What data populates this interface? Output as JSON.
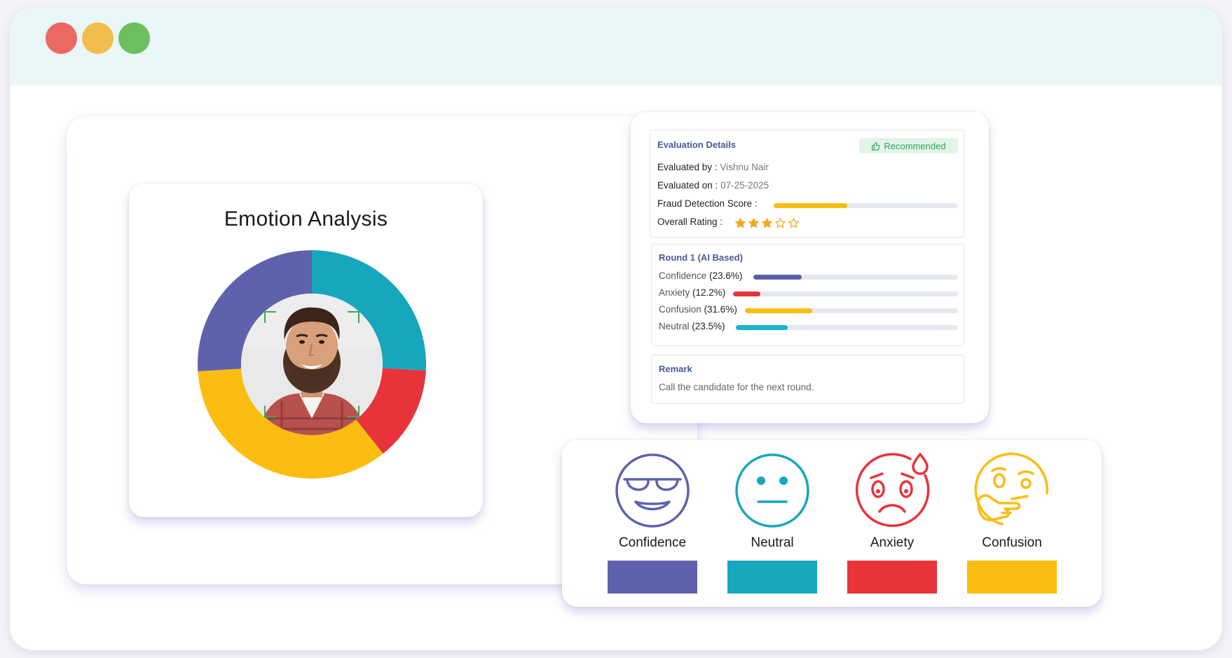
{
  "window": {
    "traffic_lights": [
      "#ea6a63",
      "#f1bd4e",
      "#6bc05e"
    ]
  },
  "emotion_card": {
    "title": "Emotion Analysis",
    "donut_segments": [
      {
        "name": "Neutral",
        "percent": 23.5,
        "color": "#17a7bd"
      },
      {
        "name": "Anxiety",
        "percent": 12.2,
        "color": "#e8333a"
      },
      {
        "name": "Confusion",
        "percent": 31.6,
        "color": "#fbbd12"
      },
      {
        "name": "Confidence",
        "percent": 23.6,
        "color": "#5e62ad"
      }
    ],
    "center": "candidate-face-photo"
  },
  "evaluation": {
    "title": "Evaluation Details",
    "badge": "Recommended",
    "badge_icon": "thumbs-up-icon",
    "evaluated_by_label": "Evaluated by :",
    "evaluated_by_value": "Vishnu Nair",
    "evaluated_on_label": "Evaluated on :",
    "evaluated_on_value": "07-25-2025",
    "fraud_label": "Fraud Detection Score :",
    "fraud_score": 0.4,
    "fraud_color": "#f7bd12",
    "rating_label": "Overall Rating :",
    "rating": 3,
    "rating_max": 5,
    "star_color": "#f4a823"
  },
  "round": {
    "title": "Round 1 (AI Based)",
    "items": [
      {
        "label": "Confidence",
        "pct_text": "(23.6%)",
        "value": 0.236,
        "color": "#5a5ea8"
      },
      {
        "label": "Anxiety",
        "pct_text": "(12.2%)",
        "value": 0.122,
        "color": "#e5353b"
      },
      {
        "label": "Confusion",
        "pct_text": "(31.6%)",
        "value": 0.316,
        "color": "#f6be12"
      },
      {
        "label": "Neutral",
        "pct_text": "(23.5%)",
        "value": 0.235,
        "color": "#18b3cc"
      }
    ]
  },
  "remark": {
    "title": "Remark",
    "text": "Call the candidate for the next round."
  },
  "legend": [
    {
      "label": "Confidence",
      "icon": "cool-sunglasses-face-icon",
      "color": "#5e62ad"
    },
    {
      "label": "Neutral",
      "icon": "neutral-face-icon",
      "color": "#17a7bd"
    },
    {
      "label": "Anxiety",
      "icon": "anxious-sweat-face-icon",
      "color": "#e8333a"
    },
    {
      "label": "Confusion",
      "icon": "thinking-face-icon",
      "color": "#fbbd12"
    }
  ]
}
